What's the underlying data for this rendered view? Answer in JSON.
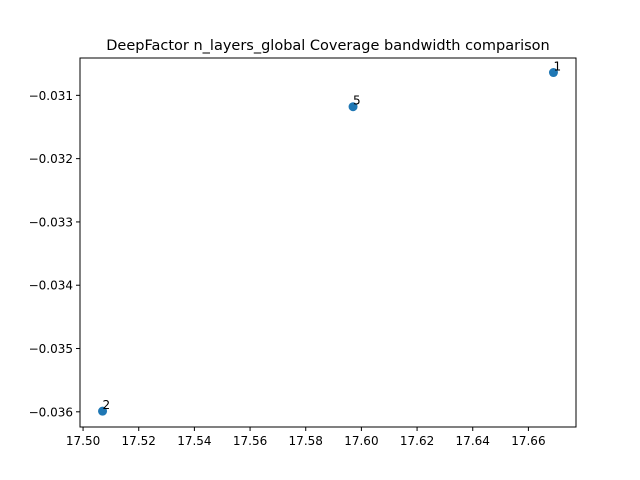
{
  "chart_data": {
    "type": "scatter",
    "title": "DeepFactor n_layers_global Coverage bandwidth comparison",
    "xlabel": "",
    "ylabel": "",
    "grid": false,
    "legend": false,
    "xlim": [
      17.4989,
      17.6771
    ],
    "ylim": [
      -0.03624,
      -0.03041
    ],
    "marker_color": "#1f77b4",
    "points": [
      {
        "label": "1",
        "x": 17.669,
        "y": -0.03064
      },
      {
        "label": "5",
        "x": 17.597,
        "y": -0.03118
      },
      {
        "label": "2",
        "x": 17.507,
        "y": -0.03599
      }
    ],
    "x_ticks": [
      {
        "value": 17.5,
        "label": "17.50"
      },
      {
        "value": 17.52,
        "label": "17.52"
      },
      {
        "value": 17.54,
        "label": "17.54"
      },
      {
        "value": 17.56,
        "label": "17.56"
      },
      {
        "value": 17.58,
        "label": "17.58"
      },
      {
        "value": 17.6,
        "label": "17.60"
      },
      {
        "value": 17.62,
        "label": "17.62"
      },
      {
        "value": 17.64,
        "label": "17.64"
      },
      {
        "value": 17.66,
        "label": "17.66"
      }
    ],
    "y_ticks": [
      {
        "value": -0.031,
        "label": "−0.031"
      },
      {
        "value": -0.032,
        "label": "−0.032"
      },
      {
        "value": -0.033,
        "label": "−0.033"
      },
      {
        "value": -0.034,
        "label": "−0.034"
      },
      {
        "value": -0.035,
        "label": "−0.035"
      },
      {
        "value": -0.036,
        "label": "−0.036"
      }
    ]
  }
}
